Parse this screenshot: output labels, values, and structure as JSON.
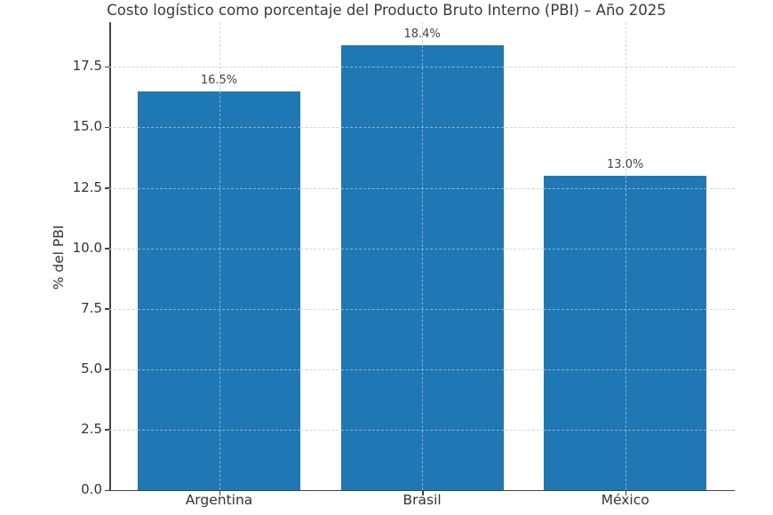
{
  "chart_data": {
    "type": "bar",
    "title": "Costo logístico como porcentaje del Producto Bruto Interno (PBI) – Año 2025",
    "xlabel": "",
    "ylabel": "% del PBI",
    "categories": [
      "Argentina",
      "Brasil",
      "México"
    ],
    "values": [
      16.5,
      18.4,
      13.0
    ],
    "data_labels": [
      "16.5%",
      "18.4%",
      "13.0%"
    ],
    "ylim": [
      0,
      19.35
    ],
    "yticks": [
      0.0,
      2.5,
      5.0,
      7.5,
      10.0,
      12.5,
      15.0,
      17.5
    ],
    "ytick_labels": [
      "0.0",
      "2.5",
      "5.0",
      "7.5",
      "10.0",
      "12.5",
      "15.0",
      "17.5"
    ],
    "grid": true,
    "grid_style": "dashed",
    "bar_color": "#1f77b4",
    "legend": null
  }
}
